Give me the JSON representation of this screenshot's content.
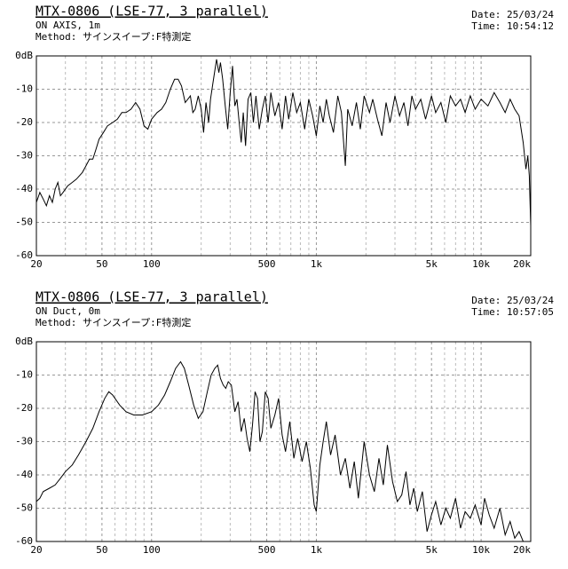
{
  "chart_data": [
    {
      "type": "line",
      "title": "MTX-0806 (LSE-77, 3 parallel)",
      "subtitle": "ON AXIS, 1m",
      "method": "Method: サインスイープ:F特測定",
      "date": "Date: 25/03/24",
      "time": "Time: 10:54:12",
      "x_log": true,
      "grid": true,
      "color": "#000000",
      "xlim": [
        20,
        20000
      ],
      "ylim": [
        -60,
        0
      ],
      "xticks": [
        20,
        50,
        100,
        500,
        {
          "value": 1000,
          "label": "1k"
        },
        {
          "value": 5000,
          "label": "5k"
        },
        {
          "value": 10000,
          "label": "10k"
        },
        {
          "value": 20000,
          "label": "20k"
        }
      ],
      "x_minor_grid": [
        30,
        40,
        60,
        70,
        80,
        90,
        200,
        300,
        400,
        600,
        700,
        800,
        900,
        2000,
        3000,
        4000,
        6000,
        7000,
        8000,
        9000
      ],
      "yticks": [
        {
          "value": 0,
          "label": "0dB"
        },
        -10,
        -20,
        -30,
        -40,
        -50,
        -60
      ],
      "x": [
        20,
        21,
        22,
        23,
        24,
        25,
        26,
        27,
        28,
        29,
        31,
        33,
        35,
        38,
        40,
        42,
        44,
        46,
        48,
        51,
        54,
        58,
        62,
        66,
        70,
        75,
        80,
        85,
        90,
        95,
        100,
        108,
        115,
        122,
        130,
        138,
        145,
        152,
        160,
        166,
        172,
        178,
        184,
        192,
        200,
        207,
        214,
        222,
        228,
        236,
        248,
        256,
        262,
        270,
        280,
        290,
        300,
        310,
        320,
        330,
        340,
        350,
        360,
        372,
        385,
        400,
        415,
        430,
        450,
        470,
        490,
        510,
        530,
        560,
        590,
        620,
        650,
        680,
        720,
        760,
        800,
        850,
        900,
        950,
        1000,
        1050,
        1100,
        1150,
        1200,
        1270,
        1350,
        1420,
        1500,
        1550,
        1650,
        1750,
        1850,
        1950,
        2100,
        2200,
        2350,
        2500,
        2650,
        2800,
        3000,
        3200,
        3400,
        3600,
        3800,
        4000,
        4300,
        4600,
        5000,
        5300,
        5700,
        6100,
        6500,
        7000,
        7500,
        8000,
        8600,
        9200,
        10000,
        11000,
        12000,
        13000,
        14000,
        15000,
        16000,
        17000,
        18000,
        18700,
        19200,
        19600,
        20000
      ],
      "values": [
        -44,
        -41,
        -43,
        -45,
        -42,
        -44,
        -40,
        -38,
        -42,
        -41,
        -39,
        -38,
        -37,
        -35,
        -33,
        -31,
        -31,
        -28,
        -25,
        -23,
        -21,
        -20,
        -19,
        -17,
        -17,
        -16,
        -14,
        -16,
        -21,
        -22,
        -19,
        -17,
        -16,
        -14,
        -10,
        -7,
        -7,
        -9,
        -14,
        -13,
        -12,
        -17,
        -16,
        -12,
        -16,
        -23,
        -14,
        -20,
        -13,
        -8,
        -1,
        -5,
        -2,
        -7,
        -15,
        -22,
        -11,
        -3,
        -15,
        -13,
        -20,
        -26,
        -17,
        -27,
        -13,
        -11,
        -20,
        -12,
        -22,
        -16,
        -12,
        -20,
        -11,
        -18,
        -14,
        -22,
        -12,
        -19,
        -11,
        -17,
        -14,
        -22,
        -13,
        -18,
        -24,
        -15,
        -20,
        -13,
        -18,
        -23,
        -12,
        -17,
        -33,
        -16,
        -21,
        -14,
        -22,
        -12,
        -17,
        -13,
        -19,
        -24,
        -14,
        -20,
        -12,
        -18,
        -14,
        -21,
        -12,
        -16,
        -13,
        -19,
        -12,
        -17,
        -14,
        -20,
        -12,
        -15,
        -13,
        -17,
        -12,
        -16,
        -13,
        -15,
        -11,
        -14,
        -17,
        -13,
        -16,
        -18,
        -26,
        -34,
        -30,
        -36,
        -51
      ]
    },
    {
      "type": "line",
      "title": "MTX-0806 (LSE-77, 3 parallel)",
      "subtitle": "ON Duct, 0m",
      "method": "Method: サインスイープ:F特測定",
      "date": "Date: 25/03/24",
      "time": "Time: 10:57:05",
      "x_log": true,
      "grid": true,
      "color": "#000000",
      "xlim": [
        20,
        20000
      ],
      "ylim": [
        -60,
        0
      ],
      "xticks": [
        20,
        50,
        100,
        500,
        {
          "value": 1000,
          "label": "1k"
        },
        {
          "value": 5000,
          "label": "5k"
        },
        {
          "value": 10000,
          "label": "10k"
        },
        {
          "value": 20000,
          "label": "20k"
        }
      ],
      "x_minor_grid": [
        30,
        40,
        60,
        70,
        80,
        90,
        200,
        300,
        400,
        600,
        700,
        800,
        900,
        2000,
        3000,
        4000,
        6000,
        7000,
        8000,
        9000
      ],
      "yticks": [
        {
          "value": 0,
          "label": "0dB"
        },
        -10,
        -20,
        -30,
        -40,
        -50,
        -60
      ],
      "x": [
        20,
        21,
        22,
        24,
        26,
        28,
        30,
        33,
        36,
        40,
        44,
        48,
        52,
        55,
        58,
        64,
        70,
        78,
        88,
        100,
        110,
        120,
        130,
        140,
        150,
        158,
        168,
        180,
        192,
        205,
        218,
        230,
        242,
        252,
        262,
        272,
        282,
        292,
        305,
        320,
        335,
        350,
        365,
        380,
        395,
        410,
        425,
        440,
        455,
        470,
        490,
        510,
        530,
        560,
        590,
        620,
        650,
        690,
        730,
        770,
        820,
        870,
        920,
        970,
        1000,
        1050,
        1100,
        1150,
        1220,
        1300,
        1400,
        1500,
        1600,
        1700,
        1800,
        1950,
        2100,
        2250,
        2400,
        2550,
        2700,
        2900,
        3100,
        3300,
        3500,
        3700,
        3900,
        4100,
        4400,
        4700,
        5000,
        5300,
        5700,
        6100,
        6500,
        7000,
        7500,
        8000,
        8600,
        9200,
        10000,
        10500,
        11200,
        12000,
        13000,
        14000,
        15000,
        16000,
        17000,
        18000,
        20000
      ],
      "values": [
        -48,
        -47,
        -45,
        -44,
        -43,
        -41,
        -39,
        -37,
        -34,
        -30,
        -26,
        -21,
        -17,
        -15,
        -16,
        -19,
        -21,
        -22,
        -22,
        -21,
        -19,
        -16,
        -12,
        -8,
        -6,
        -8,
        -13,
        -19,
        -23,
        -21,
        -15,
        -10,
        -8,
        -7,
        -11,
        -13,
        -14,
        -12,
        -13,
        -21,
        -18,
        -27,
        -23,
        -29,
        -33,
        -25,
        -15,
        -17,
        -30,
        -27,
        -15,
        -17,
        -26,
        -22,
        -17,
        -28,
        -33,
        -24,
        -35,
        -29,
        -36,
        -30,
        -38,
        -49,
        -51,
        -37,
        -30,
        -24,
        -34,
        -28,
        -40,
        -35,
        -44,
        -36,
        -47,
        -30,
        -40,
        -45,
        -35,
        -43,
        -31,
        -42,
        -48,
        -46,
        -39,
        -49,
        -44,
        -51,
        -45,
        -57,
        -52,
        -48,
        -55,
        -50,
        -53,
        -47,
        -56,
        -51,
        -53,
        -49,
        -55,
        -47,
        -52,
        -56,
        -50,
        -58,
        -54,
        -59,
        -57,
        -60,
        -60
      ]
    }
  ]
}
